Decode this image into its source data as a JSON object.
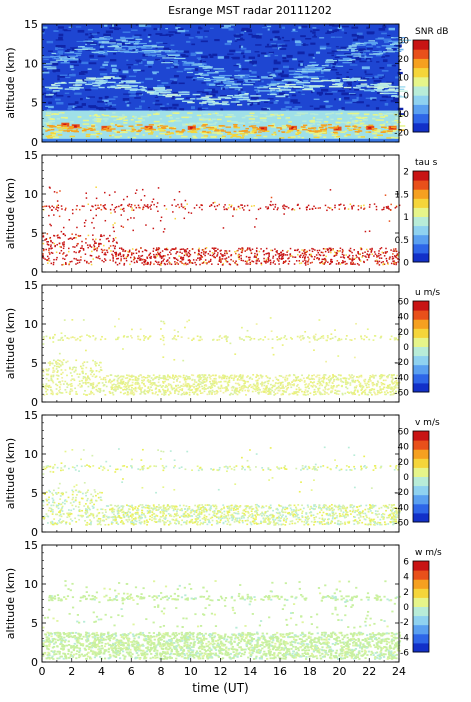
{
  "title": "Esrange MST radar 20111202",
  "colors": {
    "colormap": [
      "#1230c8",
      "#2e66e8",
      "#5aa0f0",
      "#8fd2f0",
      "#b8ecd8",
      "#e6f58a",
      "#f5d53a",
      "#f5a020",
      "#e8501a",
      "#c81414"
    ]
  },
  "chart_data": [
    {
      "type": "heatmap",
      "ylabel": "altitude (km)",
      "ylim": [
        0,
        15
      ],
      "yticks": [
        "0",
        "5",
        "10",
        "15"
      ],
      "xlim": [
        0,
        24
      ],
      "colorbar": {
        "label": "SNR dB",
        "range": [
          -20,
          30
        ],
        "ticks": [
          "30",
          "20",
          "10",
          "0",
          "-10",
          "-20"
        ]
      }
    },
    {
      "type": "heatmap",
      "ylabel": "altitude (km)",
      "ylim": [
        0,
        15
      ],
      "yticks": [
        "0",
        "5",
        "10",
        "15"
      ],
      "xlim": [
        0,
        24
      ],
      "colorbar": {
        "label": "tau s",
        "range": [
          0,
          2
        ],
        "ticks": [
          "2",
          "1.5",
          "1",
          "0.5",
          "0"
        ]
      }
    },
    {
      "type": "heatmap",
      "ylabel": "altitude (km)",
      "ylim": [
        0,
        15
      ],
      "yticks": [
        "0",
        "5",
        "10",
        "15"
      ],
      "xlim": [
        0,
        24
      ],
      "colorbar": {
        "label": "u m/s",
        "range": [
          -60,
          60
        ],
        "ticks": [
          "60",
          "40",
          "20",
          "0",
          "-20",
          "-40",
          "-60"
        ]
      }
    },
    {
      "type": "heatmap",
      "ylabel": "altitude (km)",
      "ylim": [
        0,
        15
      ],
      "yticks": [
        "0",
        "5",
        "10",
        "15"
      ],
      "xlim": [
        0,
        24
      ],
      "colorbar": {
        "label": "v m/s",
        "range": [
          -60,
          60
        ],
        "ticks": [
          "60",
          "40",
          "20",
          "0",
          "-20",
          "-40",
          "-60"
        ]
      }
    },
    {
      "type": "heatmap",
      "ylabel": "altitude (km)",
      "ylim": [
        0,
        15
      ],
      "yticks": [
        "0",
        "5",
        "10",
        "15"
      ],
      "xlim": [
        0,
        24
      ],
      "xlabel": "time (UT)",
      "xticks": [
        "0",
        "2",
        "4",
        "6",
        "8",
        "10",
        "12",
        "14",
        "16",
        "18",
        "20",
        "22",
        "24"
      ],
      "colorbar": {
        "label": "w m/s",
        "range": [
          -6,
          6
        ],
        "ticks": [
          "6",
          "4",
          "2",
          "0",
          "-2",
          "-4",
          "-6"
        ]
      }
    }
  ]
}
